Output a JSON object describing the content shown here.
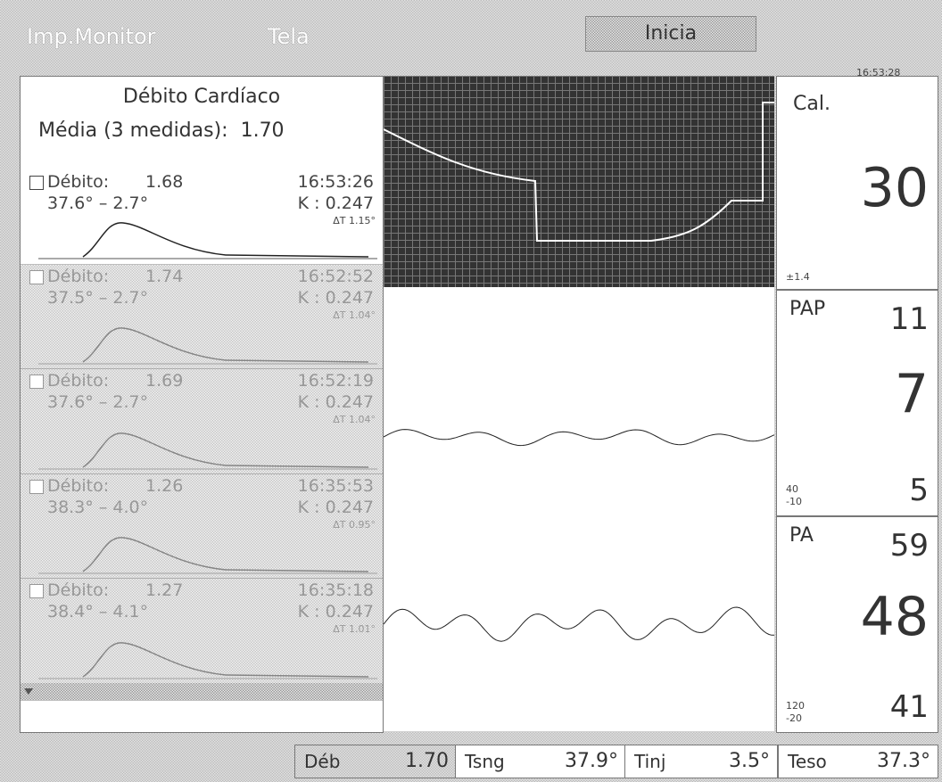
{
  "menu": {
    "items": [
      "Imp.Monitor",
      "Tela"
    ],
    "button": "Inicia"
  },
  "clock": "16:53:28",
  "cardiac_output": {
    "title": "Débito Cardíaco",
    "average": "Média (3 medidas):  1.70",
    "entries": [
      {
        "label": "Débito:",
        "value": "1.68",
        "time": "16:53:26",
        "temps": "37.6° – 2.7°",
        "k": "K : 0.247",
        "delta": "ΔT 1.15°"
      },
      {
        "label": "Débito:",
        "value": "1.74",
        "time": "16:52:52",
        "temps": "37.5° – 2.7°",
        "k": "K : 0.247",
        "delta": "ΔT 1.04°"
      },
      {
        "label": "Débito:",
        "value": "1.69",
        "time": "16:52:19",
        "temps": "37.6° – 2.7°",
        "k": "K : 0.247",
        "delta": "ΔT 1.04°"
      },
      {
        "label": "Débito:",
        "value": "1.26",
        "time": "16:35:53",
        "temps": "38.3° – 4.0°",
        "k": "K : 0.247",
        "delta": "ΔT 0.95°"
      },
      {
        "label": "Débito:",
        "value": "1.27",
        "time": "16:35:18",
        "temps": "38.4° – 4.1°",
        "k": "K : 0.247",
        "delta": "ΔT 1.01°"
      }
    ]
  },
  "panels": [
    {
      "label": "Cal.",
      "value": "30",
      "footer": "±1.4"
    },
    {
      "label": "PAP",
      "systolic": "11",
      "mean": "7",
      "diastolic": "5",
      "scale": [
        "40",
        "-10"
      ]
    },
    {
      "label": "PA",
      "systolic": "59",
      "mean": "48",
      "diastolic": "41",
      "scale": [
        "120",
        "-20"
      ]
    }
  ],
  "status_bar": [
    {
      "label": "Déb",
      "value": "1.70"
    },
    {
      "label": "Tsng",
      "value": "37.9°"
    },
    {
      "label": "Tinj",
      "value": "3.5°"
    },
    {
      "label": "Teso",
      "value": "37.3°"
    }
  ]
}
